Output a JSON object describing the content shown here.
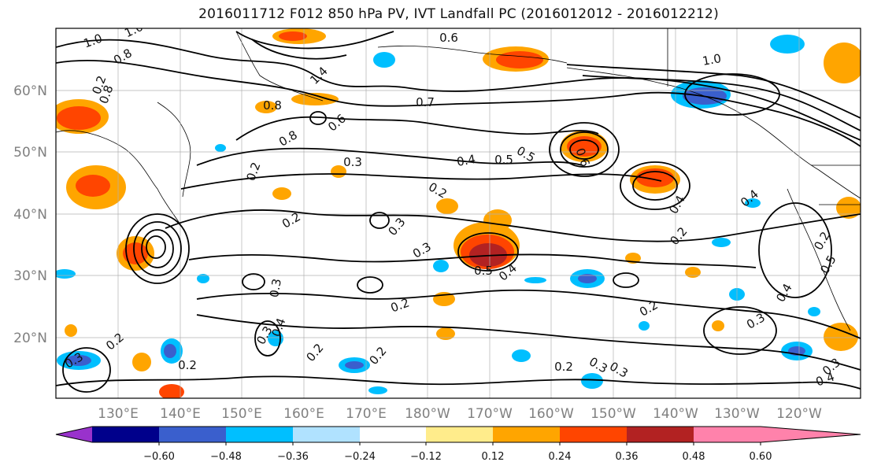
{
  "title": "2016011712 F012 850 hPa PV, IVT Landfall PC (2016012012 - 2016012212)",
  "map": {
    "lat_labels": [
      "60°N",
      "50°N",
      "40°N",
      "30°N",
      "20°N"
    ],
    "lon_labels": [
      "130°E",
      "140°E",
      "150°E",
      "160°E",
      "170°E",
      "180°W",
      "170°W",
      "160°W",
      "150°W",
      "140°W",
      "130°W",
      "120°W"
    ],
    "contour_labels": [
      "1.0",
      "1.0",
      "0.8",
      "0.2",
      "0.8",
      "1.4",
      "0.8",
      "0.8",
      "0.7",
      "0.6",
      "0.6",
      "0.5",
      "0.6",
      "1.0",
      "0.4",
      "0.5",
      "0.4",
      "0.4",
      "0.3",
      "0.2",
      "0.2",
      "0.2",
      "0.3",
      "0.3",
      "0.3",
      "0.5",
      "0.4",
      "0.2",
      "0.3",
      "0.2",
      "0.2",
      "0.2",
      "0.2",
      "0.4",
      "0.5",
      "0.3",
      "0.2",
      "0.2",
      "0.3",
      "0.3",
      "0.2",
      "0.3",
      "0.4",
      "0.4",
      "0.2",
      "0.3"
    ]
  },
  "colorbar": {
    "ticks": [
      "−0.60",
      "−0.48",
      "−0.36",
      "−0.24",
      "−0.12",
      "0.12",
      "0.24",
      "0.36",
      "0.48",
      "0.60"
    ],
    "colors": {
      "under": "#9932cc",
      "c1": "#00008b",
      "c2": "#3a5fcd",
      "c3": "#00bfff",
      "c4": "#b0e2ff",
      "c5": "#ffffff",
      "c6": "#ffec8b",
      "c7": "#ffa500",
      "c8": "#ff4500",
      "c9": "#b22222",
      "over": "#ff82ab"
    }
  }
}
